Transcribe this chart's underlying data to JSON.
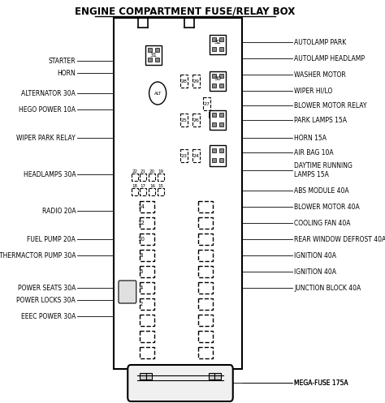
{
  "title": "ENGINE COMPARTMENT FUSE/RELAY BOX",
  "bg_color": "#ffffff",
  "left_labels": [
    "STARTER",
    "HORN",
    "ALTERNATOR 30A",
    "HEGO POWER 10A",
    "WIPER PARK RELAY",
    "HEADLAMPS 30A",
    "RADIO 20A",
    "FUEL PUMP 20A",
    "THERMACTOR PUMP 30A",
    "POWER SEATS 30A",
    "POWER LOCKS 30A",
    "EEEC POWER 30A"
  ],
  "right_labels": [
    "AUTOLAMP PARK",
    "AUTOLAMP HEADLAMP",
    "WASHER MOTOR",
    "WIPER HI/LO",
    "BLOWER MOTOR RELAY",
    "PARK LAMPS 15A",
    "HORN 15A",
    "AIR BAG 10A",
    "DAYTIME RUNNING\nLAMPS 15A",
    "ABS MODULE 40A",
    "BLOWER MOTOR 40A",
    "COOLING FAN 40A",
    "REAR WINDOW DEFROST 40A",
    "IGNITION 40A",
    "IGNITION 40A",
    "JUNCTION BLOCK 40A",
    "MEGA-FUSE 175A"
  ],
  "text_color": "#000000",
  "line_color": "#000000",
  "box_color": "#000000",
  "fuse_fill": "#ffffff"
}
